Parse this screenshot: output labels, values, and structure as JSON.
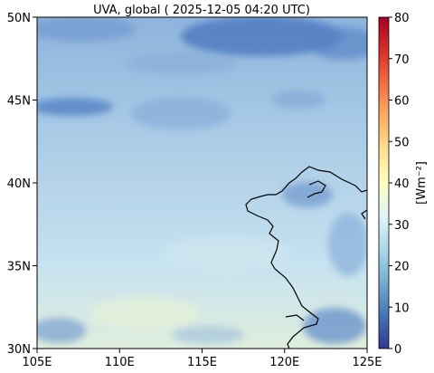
{
  "title": "UVA, global ( 2025-12-05 04:20 UTC)",
  "map": {
    "extent": {
      "lon": [
        105,
        125
      ],
      "lat": [
        30,
        50
      ]
    },
    "xticks": [
      {
        "value": 105,
        "label": "105E"
      },
      {
        "value": 110,
        "label": "110E"
      },
      {
        "value": 115,
        "label": "115E"
      },
      {
        "value": 120,
        "label": "120E"
      },
      {
        "value": 125,
        "label": "125E"
      }
    ],
    "yticks": [
      {
        "value": 30,
        "label": "30N"
      },
      {
        "value": 35,
        "label": "35N"
      },
      {
        "value": 40,
        "label": "40N"
      },
      {
        "value": 45,
        "label": "45N"
      },
      {
        "value": 50,
        "label": "50N"
      }
    ],
    "coastline_color": "#000000"
  },
  "colorbar": {
    "label": "[Wm⁻²]",
    "range": [
      0,
      80
    ],
    "ticks": [
      {
        "value": 0,
        "label": "0"
      },
      {
        "value": 10,
        "label": "10"
      },
      {
        "value": 20,
        "label": "20"
      },
      {
        "value": 30,
        "label": "30"
      },
      {
        "value": 40,
        "label": "40"
      },
      {
        "value": 50,
        "label": "50"
      },
      {
        "value": 60,
        "label": "60"
      },
      {
        "value": 70,
        "label": "70"
      },
      {
        "value": 80,
        "label": "80"
      }
    ],
    "colormap": "RdYlBu_r"
  }
}
